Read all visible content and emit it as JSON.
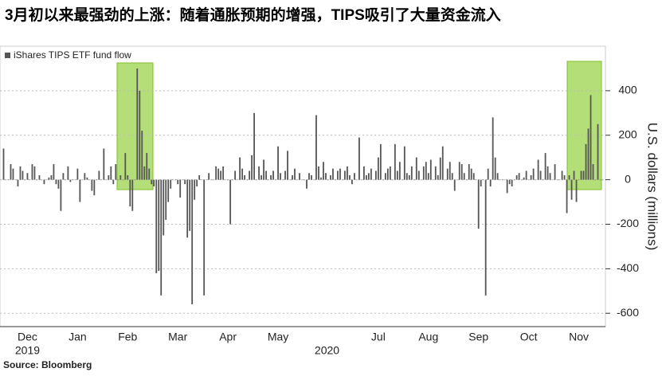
{
  "chart_data": {
    "type": "bar",
    "title": "3月初以来最强劲的上涨：随着通胀预期的增强，TIPS吸引了大量资金流入",
    "legend": "iShares TIPS ETF fund flow",
    "y_label": "U.S. dollars (millions)",
    "source": "Source: Bloomberg",
    "color": "#555555",
    "grid": true,
    "ylim": [
      -660,
      600
    ],
    "yticks": [
      -600,
      -400,
      -200,
      0,
      200,
      400
    ],
    "x_year_labels": [
      "2019",
      "2020"
    ],
    "categories": [
      null,
      null,
      null,
      null,
      null,
      null,
      null,
      null,
      null,
      null,
      "Dec",
      null,
      null,
      null,
      null,
      null,
      null,
      null,
      null,
      null,
      null,
      null,
      null,
      null,
      null,
      null,
      null,
      null,
      null,
      null,
      null,
      "Jan",
      null,
      null,
      null,
      null,
      null,
      null,
      null,
      null,
      null,
      null,
      null,
      null,
      null,
      null,
      null,
      null,
      null,
      null,
      null,
      null,
      "Feb",
      null,
      null,
      null,
      null,
      null,
      null,
      null,
      null,
      null,
      null,
      null,
      null,
      null,
      null,
      null,
      null,
      null,
      null,
      null,
      null,
      "Mar",
      null,
      null,
      null,
      null,
      null,
      null,
      null,
      null,
      null,
      null,
      null,
      null,
      null,
      null,
      null,
      null,
      null,
      null,
      null,
      null,
      "Apr",
      null,
      null,
      null,
      null,
      null,
      null,
      null,
      null,
      null,
      null,
      null,
      null,
      null,
      null,
      null,
      null,
      null,
      null,
      null,
      null,
      "May",
      null,
      null,
      null,
      null,
      null,
      null,
      null,
      null,
      null,
      null,
      null,
      null,
      null,
      null,
      null,
      null,
      null,
      null,
      null,
      null,
      null,
      null,
      null,
      null,
      null,
      null,
      null,
      null,
      null,
      null,
      null,
      null,
      null,
      null,
      null,
      null,
      null,
      null,
      null,
      null,
      null,
      "Jul",
      null,
      null,
      null,
      null,
      null,
      null,
      null,
      null,
      null,
      null,
      null,
      null,
      null,
      null,
      null,
      null,
      null,
      null,
      null,
      null,
      "Aug",
      null,
      null,
      null,
      null,
      null,
      null,
      null,
      null,
      null,
      null,
      null,
      null,
      null,
      null,
      null,
      null,
      null,
      null,
      null,
      null,
      "Sep",
      null,
      null,
      null,
      null,
      null,
      null,
      null,
      null,
      null,
      null,
      null,
      null,
      null,
      null,
      null,
      null,
      null,
      null,
      null,
      null,
      "Oct",
      null,
      null,
      null,
      null,
      null,
      null,
      null,
      null,
      null,
      null,
      null,
      null,
      null,
      null,
      null,
      null,
      null,
      null,
      null,
      null,
      "Nov",
      null,
      null,
      null,
      null,
      null,
      null,
      null,
      null,
      null,
      null
    ],
    "values": [
      140,
      0,
      0,
      70,
      50,
      0,
      -30,
      60,
      40,
      0,
      30,
      0,
      70,
      60,
      0,
      20,
      0,
      -20,
      0,
      10,
      20,
      70,
      -20,
      -40,
      -140,
      30,
      0,
      60,
      -10,
      0,
      0,
      50,
      -100,
      0,
      30,
      10,
      0,
      -50,
      -70,
      0,
      40,
      0,
      140,
      0,
      20,
      60,
      -20,
      70,
      0,
      20,
      0,
      120,
      20,
      -120,
      -140,
      0,
      500,
      400,
      220,
      60,
      120,
      50,
      -20,
      -30,
      -420,
      -410,
      -520,
      -250,
      -180,
      -100,
      -40,
      0,
      0,
      -20,
      -80,
      0,
      -20,
      -260,
      -230,
      -560,
      -90,
      -30,
      20,
      0,
      -520,
      0,
      30,
      0,
      0,
      60,
      50,
      40,
      60,
      0,
      0,
      -200,
      0,
      40,
      0,
      100,
      50,
      20,
      0,
      40,
      110,
      300,
      0,
      60,
      20,
      90,
      40,
      0,
      20,
      40,
      0,
      150,
      30,
      0,
      40,
      130,
      0,
      20,
      50,
      0,
      30,
      0,
      0,
      -40,
      30,
      20,
      0,
      290,
      60,
      10,
      80,
      30,
      0,
      20,
      50,
      0,
      40,
      50,
      0,
      40,
      60,
      20,
      -20,
      30,
      0,
      190,
      0,
      60,
      20,
      30,
      50,
      0,
      40,
      100,
      160,
      0,
      30,
      50,
      60,
      0,
      160,
      40,
      80,
      0,
      150,
      30,
      20,
      60,
      0,
      100,
      40,
      0,
      60,
      80,
      30,
      90,
      0,
      60,
      20,
      100,
      150,
      0,
      50,
      80,
      30,
      -50,
      0,
      80,
      70,
      30,
      0,
      70,
      50,
      30,
      0,
      -220,
      -30,
      0,
      -520,
      50,
      -30,
      280,
      100,
      30,
      0,
      0,
      0,
      -60,
      -20,
      -30,
      0,
      20,
      30,
      0,
      10,
      40,
      0,
      20,
      50,
      0,
      90,
      40,
      0,
      120,
      60,
      30,
      0,
      70,
      0,
      0,
      40,
      20,
      -150,
      20,
      -90,
      40,
      -100,
      0,
      40,
      40,
      160,
      230,
      380,
      70,
      0,
      250,
      0,
      0
    ]
  }
}
